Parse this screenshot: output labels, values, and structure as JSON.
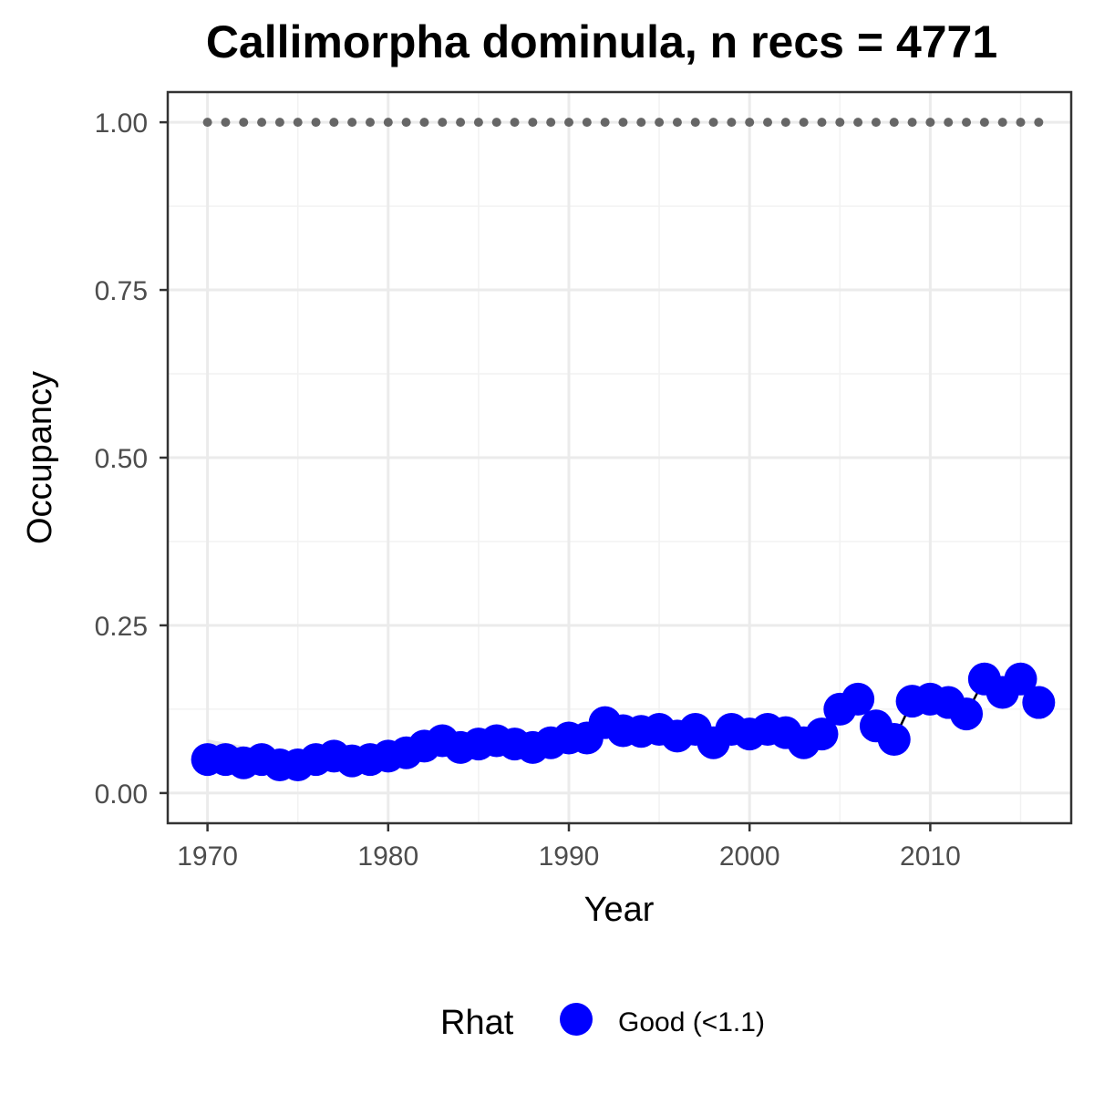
{
  "chart_data": {
    "type": "line",
    "title": "Callimorpha dominula, n recs = 4771",
    "xlabel": "Year",
    "ylabel": "Occupancy",
    "xlim": [
      1967.8,
      2017.8
    ],
    "ylim": [
      -0.045,
      1.045
    ],
    "x_ticks": [
      1970,
      1980,
      1990,
      2000,
      2010
    ],
    "x_tick_labels": [
      "1970",
      "1980",
      "1990",
      "2000",
      "2010"
    ],
    "y_ticks": [
      0,
      0.25,
      0.5,
      0.75,
      1.0
    ],
    "y_tick_labels": [
      "0.00",
      "0.25",
      "0.50",
      "0.75",
      "1.00"
    ],
    "grid": true,
    "x": [
      1970,
      1971,
      1972,
      1973,
      1974,
      1975,
      1976,
      1977,
      1978,
      1979,
      1980,
      1981,
      1982,
      1983,
      1984,
      1985,
      1986,
      1987,
      1988,
      1989,
      1990,
      1991,
      1992,
      1993,
      1994,
      1995,
      1996,
      1997,
      1998,
      1999,
      2000,
      2001,
      2002,
      2003,
      2004,
      2005,
      2006,
      2007,
      2008,
      2009,
      2010,
      2011,
      2012,
      2013,
      2014,
      2015,
      2016
    ],
    "series": [
      {
        "name": "Occupancy",
        "role": "mean",
        "color": "#0000ff",
        "values": [
          0.05,
          0.05,
          0.045,
          0.05,
          0.042,
          0.042,
          0.05,
          0.055,
          0.048,
          0.05,
          0.055,
          0.06,
          0.07,
          0.078,
          0.068,
          0.073,
          0.078,
          0.073,
          0.068,
          0.075,
          0.082,
          0.082,
          0.105,
          0.093,
          0.092,
          0.095,
          0.085,
          0.095,
          0.075,
          0.095,
          0.088,
          0.095,
          0.09,
          0.075,
          0.088,
          0.125,
          0.14,
          0.1,
          0.08,
          0.137,
          0.14,
          0.135,
          0.118,
          0.17,
          0.15,
          0.17,
          0.135
        ]
      },
      {
        "name": "Upper",
        "role": "upper-bound",
        "color": "#666666",
        "values": [
          1,
          1,
          1,
          1,
          1,
          1,
          1,
          1,
          1,
          1,
          1,
          1,
          1,
          1,
          1,
          1,
          1,
          1,
          1,
          1,
          1,
          1,
          1,
          1,
          1,
          1,
          1,
          1,
          1,
          1,
          1,
          1,
          1,
          1,
          1,
          1,
          1,
          1,
          1,
          1,
          1,
          1,
          1,
          1,
          1,
          1,
          1
        ]
      }
    ],
    "legend": {
      "title": "Rhat",
      "position": "bottom",
      "items": [
        {
          "label": "Good (<1.1)",
          "color": "#0000ff"
        }
      ]
    }
  }
}
